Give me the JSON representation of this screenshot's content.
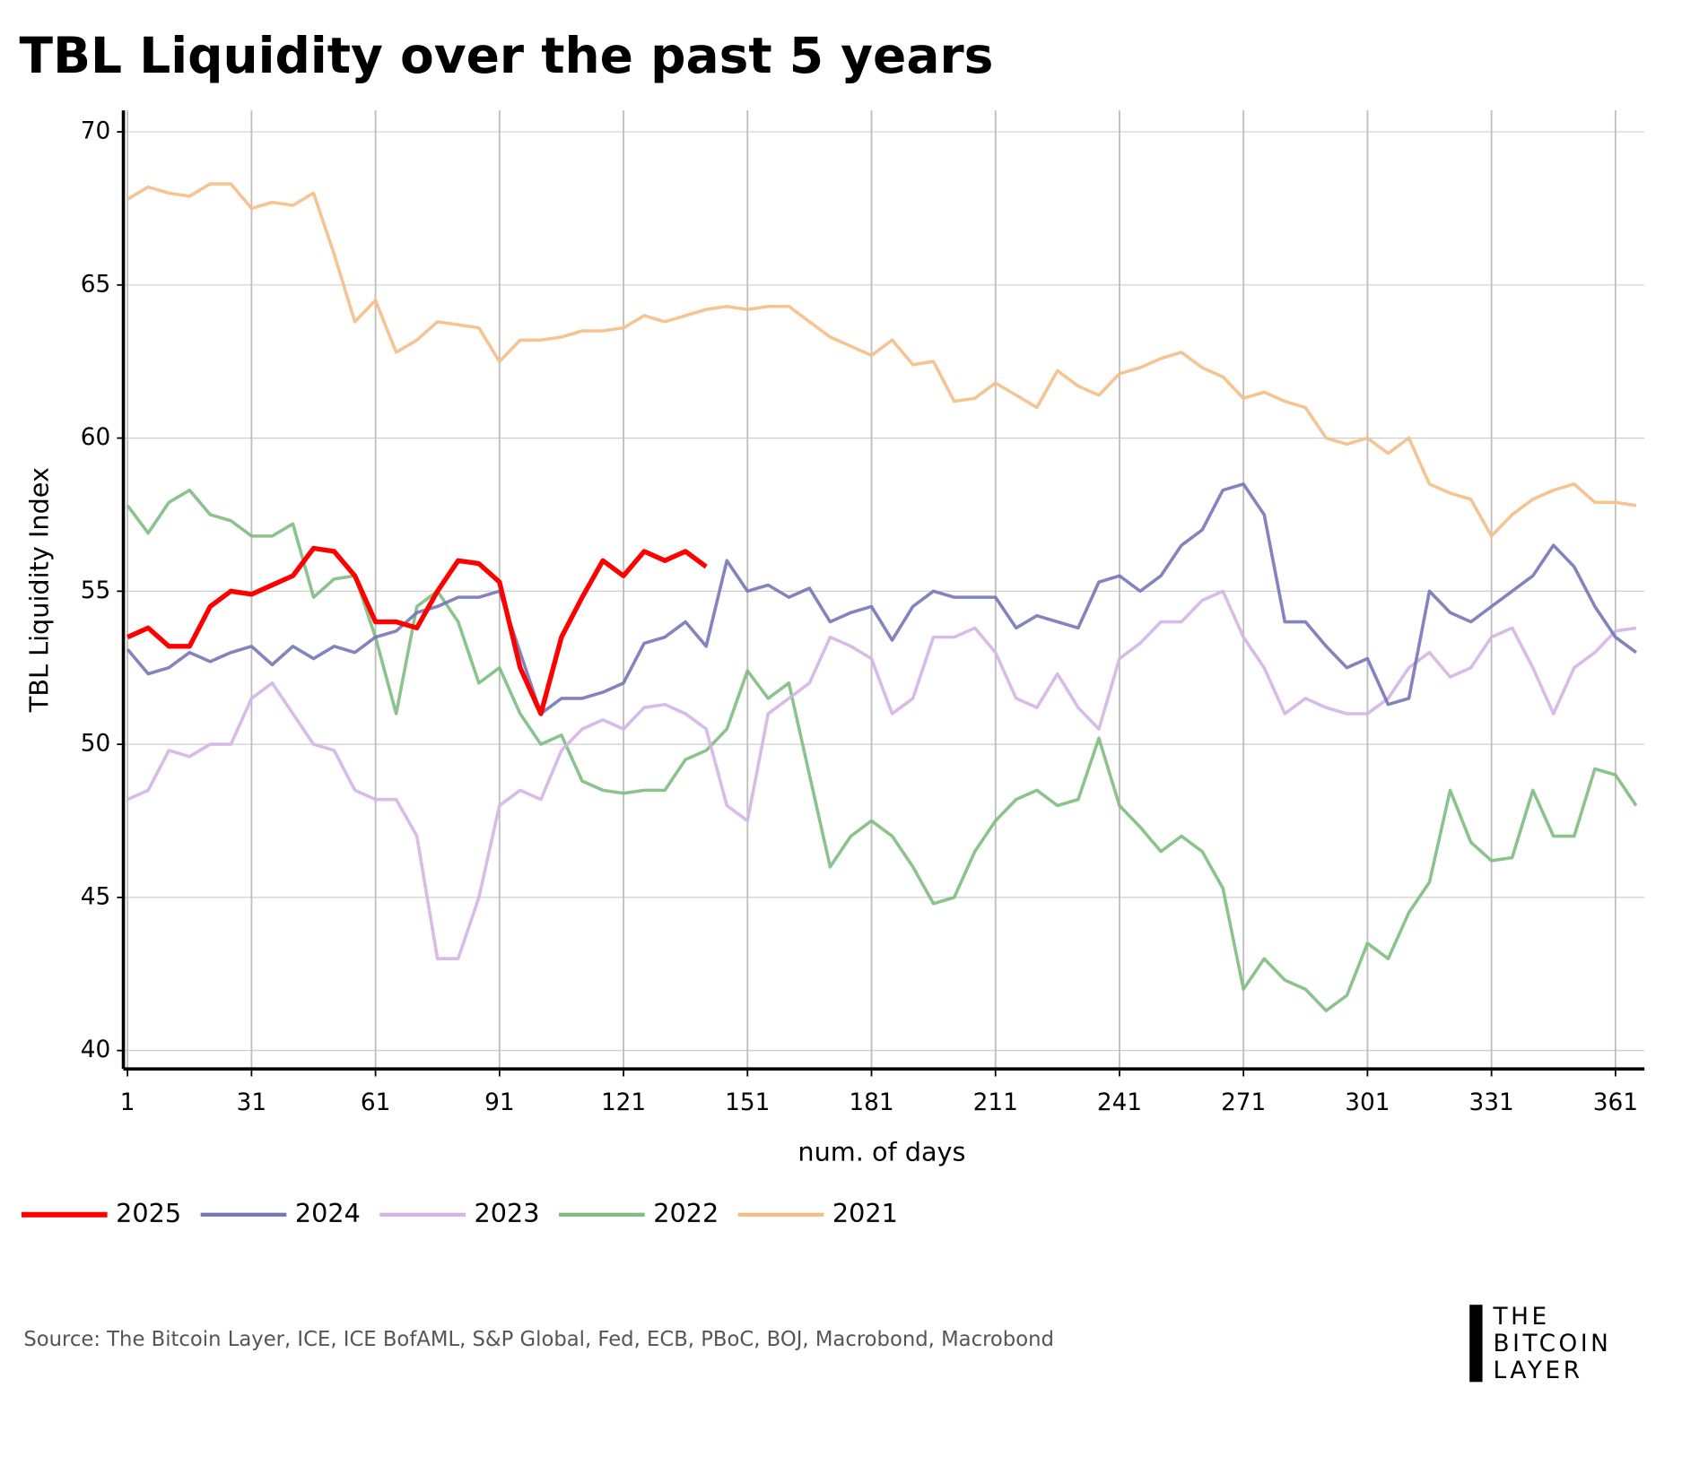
{
  "chart_data": {
    "type": "line",
    "title": "TBL Liquidity over the past 5 years",
    "xlabel": "num. of days",
    "ylabel": "TBL Liquidity Index",
    "source": "Source: The Bitcoin Layer, ICE, ICE BofAML, S&P Global, Fed, ECB, PBoC, BOJ, Macrobond, Macrobond",
    "logo": [
      "THE",
      "BITCOIN",
      "LAYER"
    ],
    "x": [
      1,
      6,
      11,
      16,
      21,
      26,
      31,
      36,
      41,
      46,
      51,
      56,
      61,
      66,
      71,
      76,
      81,
      86,
      91,
      96,
      101,
      106,
      111,
      116,
      121,
      126,
      131,
      136,
      141,
      146,
      151,
      156,
      161,
      166,
      171,
      176,
      181,
      186,
      191,
      196,
      201,
      206,
      211,
      216,
      221,
      226,
      231,
      236,
      241,
      246,
      251,
      256,
      261,
      266,
      271,
      276,
      281,
      286,
      291,
      296,
      301,
      306,
      311,
      316,
      321,
      326,
      331,
      336,
      341,
      346,
      351,
      356,
      361,
      366
    ],
    "xlim": [
      0,
      368
    ],
    "ylim": [
      39.4,
      70.7
    ],
    "xticks": [
      1,
      31,
      61,
      91,
      121,
      151,
      181,
      211,
      241,
      271,
      301,
      331,
      361
    ],
    "yticks": [
      40,
      45,
      50,
      55,
      60,
      65,
      70
    ],
    "grid": true,
    "series": [
      {
        "name": "2025",
        "color": "#ff0000",
        "values": [
          53.5,
          53.8,
          53.2,
          53.2,
          54.5,
          55.0,
          54.9,
          55.2,
          55.5,
          56.4,
          56.3,
          55.5,
          54.0,
          54.0,
          53.8,
          55.0,
          56.0,
          55.9,
          55.3,
          52.5,
          51.0,
          53.5,
          54.8,
          56.0,
          55.5,
          56.3,
          56.0,
          56.3,
          55.8,
          null,
          null,
          null,
          null,
          null,
          null,
          null,
          null,
          null,
          null,
          null,
          null,
          null,
          null,
          null,
          null,
          null,
          null,
          null,
          null,
          null,
          null,
          null,
          null,
          null,
          null,
          null,
          null,
          null,
          null,
          null,
          null,
          null,
          null,
          null,
          null,
          null,
          null,
          null,
          null,
          null,
          null,
          null,
          null,
          null
        ]
      },
      {
        "name": "2024",
        "color": "#7476b8",
        "values": [
          53.1,
          52.3,
          52.5,
          53.0,
          52.7,
          53.0,
          53.2,
          52.6,
          53.2,
          52.8,
          53.2,
          53.0,
          53.5,
          53.7,
          54.3,
          54.5,
          54.8,
          54.8,
          55.0,
          53.0,
          51.0,
          51.5,
          51.5,
          51.7,
          52.0,
          53.3,
          53.5,
          54.0,
          53.2,
          56.0,
          55.0,
          55.2,
          54.8,
          55.1,
          54.0,
          54.3,
          54.5,
          53.4,
          54.5,
          55.0,
          54.8,
          54.8,
          54.8,
          53.8,
          54.2,
          54.0,
          53.8,
          55.3,
          55.5,
          55.0,
          55.5,
          56.5,
          57.0,
          58.3,
          58.5,
          57.5,
          54.0,
          54.0,
          53.2,
          52.5,
          52.8,
          51.3,
          51.5,
          55.0,
          54.3,
          54.0,
          54.5,
          55.0,
          55.5,
          56.5,
          55.8,
          54.5,
          53.5,
          53.0
        ]
      },
      {
        "name": "2023",
        "color": "#d4b4e4",
        "values": [
          48.2,
          48.5,
          49.8,
          49.6,
          50.0,
          50.0,
          51.5,
          52.0,
          51.0,
          50.0,
          49.8,
          48.5,
          48.2,
          48.2,
          47.0,
          43.0,
          43.0,
          45.0,
          48.0,
          48.5,
          48.2,
          49.8,
          50.5,
          50.8,
          50.5,
          51.2,
          51.3,
          51.0,
          50.5,
          48.0,
          47.5,
          51.0,
          51.5,
          52.0,
          53.5,
          53.2,
          52.8,
          51.0,
          51.5,
          53.5,
          53.5,
          53.8,
          53.0,
          51.5,
          51.2,
          52.3,
          51.2,
          50.5,
          52.8,
          53.3,
          54.0,
          54.0,
          54.7,
          55.0,
          53.5,
          52.5,
          51.0,
          51.5,
          51.2,
          51.0,
          51.0,
          51.5,
          52.5,
          53.0,
          52.2,
          52.5,
          53.5,
          53.8,
          52.5,
          51.0,
          52.5,
          53.0,
          53.7,
          53.8
        ]
      },
      {
        "name": "2022",
        "color": "#7dbd7f",
        "values": [
          57.8,
          56.9,
          57.9,
          58.3,
          57.5,
          57.3,
          56.8,
          56.8,
          57.2,
          54.8,
          55.4,
          55.5,
          53.5,
          51.0,
          54.5,
          55.0,
          54.0,
          52.0,
          52.5,
          51.0,
          50.0,
          50.3,
          48.8,
          48.5,
          48.4,
          48.5,
          48.5,
          49.5,
          49.8,
          50.5,
          52.4,
          51.5,
          52.0,
          49.0,
          46.0,
          47.0,
          47.5,
          47.0,
          46.0,
          44.8,
          45.0,
          46.5,
          47.5,
          48.2,
          48.5,
          48.0,
          48.2,
          50.2,
          48.0,
          47.3,
          46.5,
          47.0,
          46.5,
          45.3,
          42.0,
          43.0,
          42.3,
          42.0,
          41.3,
          41.8,
          43.5,
          43.0,
          44.5,
          45.5,
          48.5,
          46.8,
          46.2,
          46.3,
          48.5,
          47.0,
          47.0,
          49.2,
          49.0,
          48.0
        ]
      },
      {
        "name": "2021",
        "color": "#f5be86",
        "values": [
          67.8,
          68.2,
          68.0,
          67.9,
          68.3,
          68.3,
          67.5,
          67.7,
          67.6,
          68.0,
          66.0,
          63.8,
          64.5,
          62.8,
          63.2,
          63.8,
          63.7,
          63.6,
          62.5,
          63.2,
          63.2,
          63.3,
          63.5,
          63.5,
          63.6,
          64.0,
          63.8,
          64.0,
          64.2,
          64.3,
          64.2,
          64.3,
          64.3,
          63.8,
          63.3,
          63.0,
          62.7,
          63.2,
          62.4,
          62.5,
          61.2,
          61.3,
          61.8,
          61.4,
          61.0,
          62.2,
          61.7,
          61.4,
          62.1,
          62.3,
          62.6,
          62.8,
          62.3,
          62.0,
          61.3,
          61.5,
          61.2,
          61.0,
          60.0,
          59.8,
          60.0,
          59.5,
          60.0,
          58.5,
          58.2,
          58.0,
          56.8,
          57.5,
          58.0,
          58.3,
          58.5,
          57.9,
          57.9,
          57.8
        ]
      }
    ]
  }
}
